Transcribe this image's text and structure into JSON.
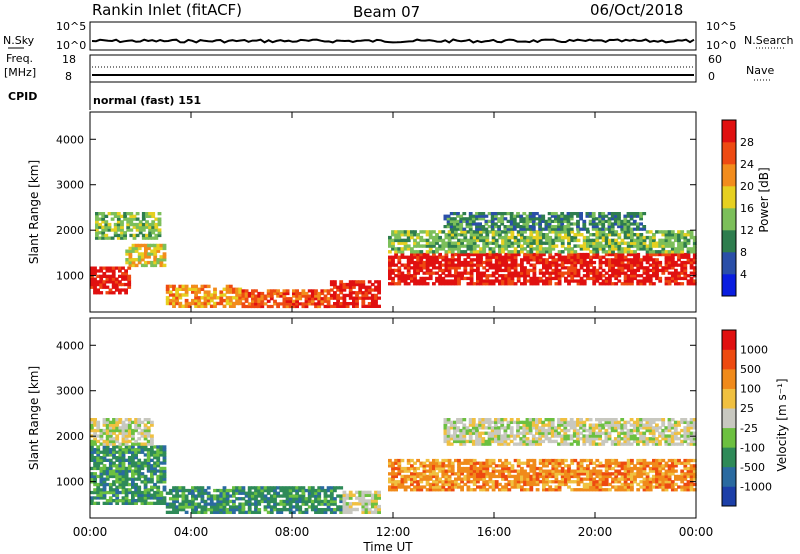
{
  "header": {
    "station": "Rankin Inlet (fitACF)",
    "beam": "Beam 07",
    "date": "06/Oct/2018"
  },
  "nsky_panel": {
    "left_label": "N.Sky",
    "right_label": "N.Search",
    "left_ticks": [
      "10^5",
      "10^0"
    ],
    "right_ticks": [
      "10^5",
      "10^0"
    ]
  },
  "freq_panel": {
    "left_label_1": "Freq.",
    "left_label_2": "[MHz]",
    "right_label": "Nave",
    "left_ticks": [
      "18",
      "8"
    ],
    "right_ticks": [
      "60",
      "0"
    ]
  },
  "cpid_panel": {
    "label": "CPID",
    "value": "normal (fast) 151"
  },
  "chart_data": [
    {
      "type": "heatmap",
      "name": "power",
      "ylabel": "Slant Range [km]",
      "xlabel": "Time UT",
      "yticks": [
        "1000",
        "2000",
        "3000",
        "4000"
      ],
      "xticks": [
        "00:00",
        "04:00",
        "08:00",
        "12:00",
        "16:00",
        "20:00",
        "00:00"
      ],
      "ylim": [
        200,
        4600
      ],
      "colorbar_label": "Power [dB]",
      "colorbar_ticks": [
        "4",
        "8",
        "12",
        "16",
        "20",
        "24",
        "28"
      ],
      "colorbar_colors": [
        "#0a1ee0",
        "#2a4fa8",
        "#2e7d4e",
        "#7cbf5a",
        "#e6d020",
        "#f28c1c",
        "#ee4a12",
        "#e01010"
      ],
      "bands": [
        {
          "t0": 0.0,
          "t1": 1.6,
          "r0": 600,
          "r1": 1200,
          "c": 7
        },
        {
          "t0": 0.2,
          "t1": 2.8,
          "r0": 1800,
          "r1": 2400,
          "c": 3
        },
        {
          "t0": 1.4,
          "t1": 3.0,
          "r0": 1200,
          "r1": 1700,
          "c": 4
        },
        {
          "t0": 3.0,
          "t1": 6.0,
          "r0": 300,
          "r1": 800,
          "c": 5
        },
        {
          "t0": 6.0,
          "t1": 9.5,
          "r0": 300,
          "r1": 700,
          "c": 6
        },
        {
          "t0": 9.5,
          "t1": 11.5,
          "r0": 300,
          "r1": 900,
          "c": 7
        },
        {
          "t0": 11.8,
          "t1": 24.0,
          "r0": 800,
          "r1": 1500,
          "c": 7
        },
        {
          "t0": 11.8,
          "t1": 24.0,
          "r0": 1500,
          "r1": 2000,
          "c": 3
        },
        {
          "t0": 14.0,
          "t1": 22.0,
          "r0": 2000,
          "r1": 2400,
          "c": 2
        }
      ]
    },
    {
      "type": "heatmap",
      "name": "velocity",
      "ylabel": "Slant Range [km]",
      "xlabel": "Time UT",
      "yticks": [
        "1000",
        "2000",
        "3000",
        "4000"
      ],
      "xticks": [
        "00:00",
        "04:00",
        "08:00",
        "12:00",
        "16:00",
        "20:00",
        "00:00"
      ],
      "ylim": [
        200,
        4600
      ],
      "colorbar_label": "Velocity [m s⁻¹]",
      "colorbar_ticks": [
        "1000",
        "500",
        "100",
        "25",
        "-25",
        "-100",
        "-500",
        "-1000"
      ],
      "colorbar_colors": [
        "#1c3fa8",
        "#2a6aa0",
        "#2e8a58",
        "#6cc040",
        "#c8c8c0",
        "#f0c040",
        "#f08a1a",
        "#ee4a10",
        "#e01010"
      ],
      "bands": [
        {
          "t0": 0.0,
          "t1": 3.0,
          "r0": 500,
          "r1": 1800,
          "c": 2
        },
        {
          "t0": 0.0,
          "t1": 2.5,
          "r0": 1800,
          "r1": 2400,
          "c": 4
        },
        {
          "t0": 3.0,
          "t1": 10.0,
          "r0": 300,
          "r1": 900,
          "c": 2
        },
        {
          "t0": 10.0,
          "t1": 11.5,
          "r0": 300,
          "r1": 800,
          "c": 4
        },
        {
          "t0": 11.8,
          "t1": 24.0,
          "r0": 800,
          "r1": 1500,
          "c": 6
        },
        {
          "t0": 14.0,
          "t1": 24.0,
          "r0": 1800,
          "r1": 2400,
          "c": 4
        }
      ]
    }
  ]
}
